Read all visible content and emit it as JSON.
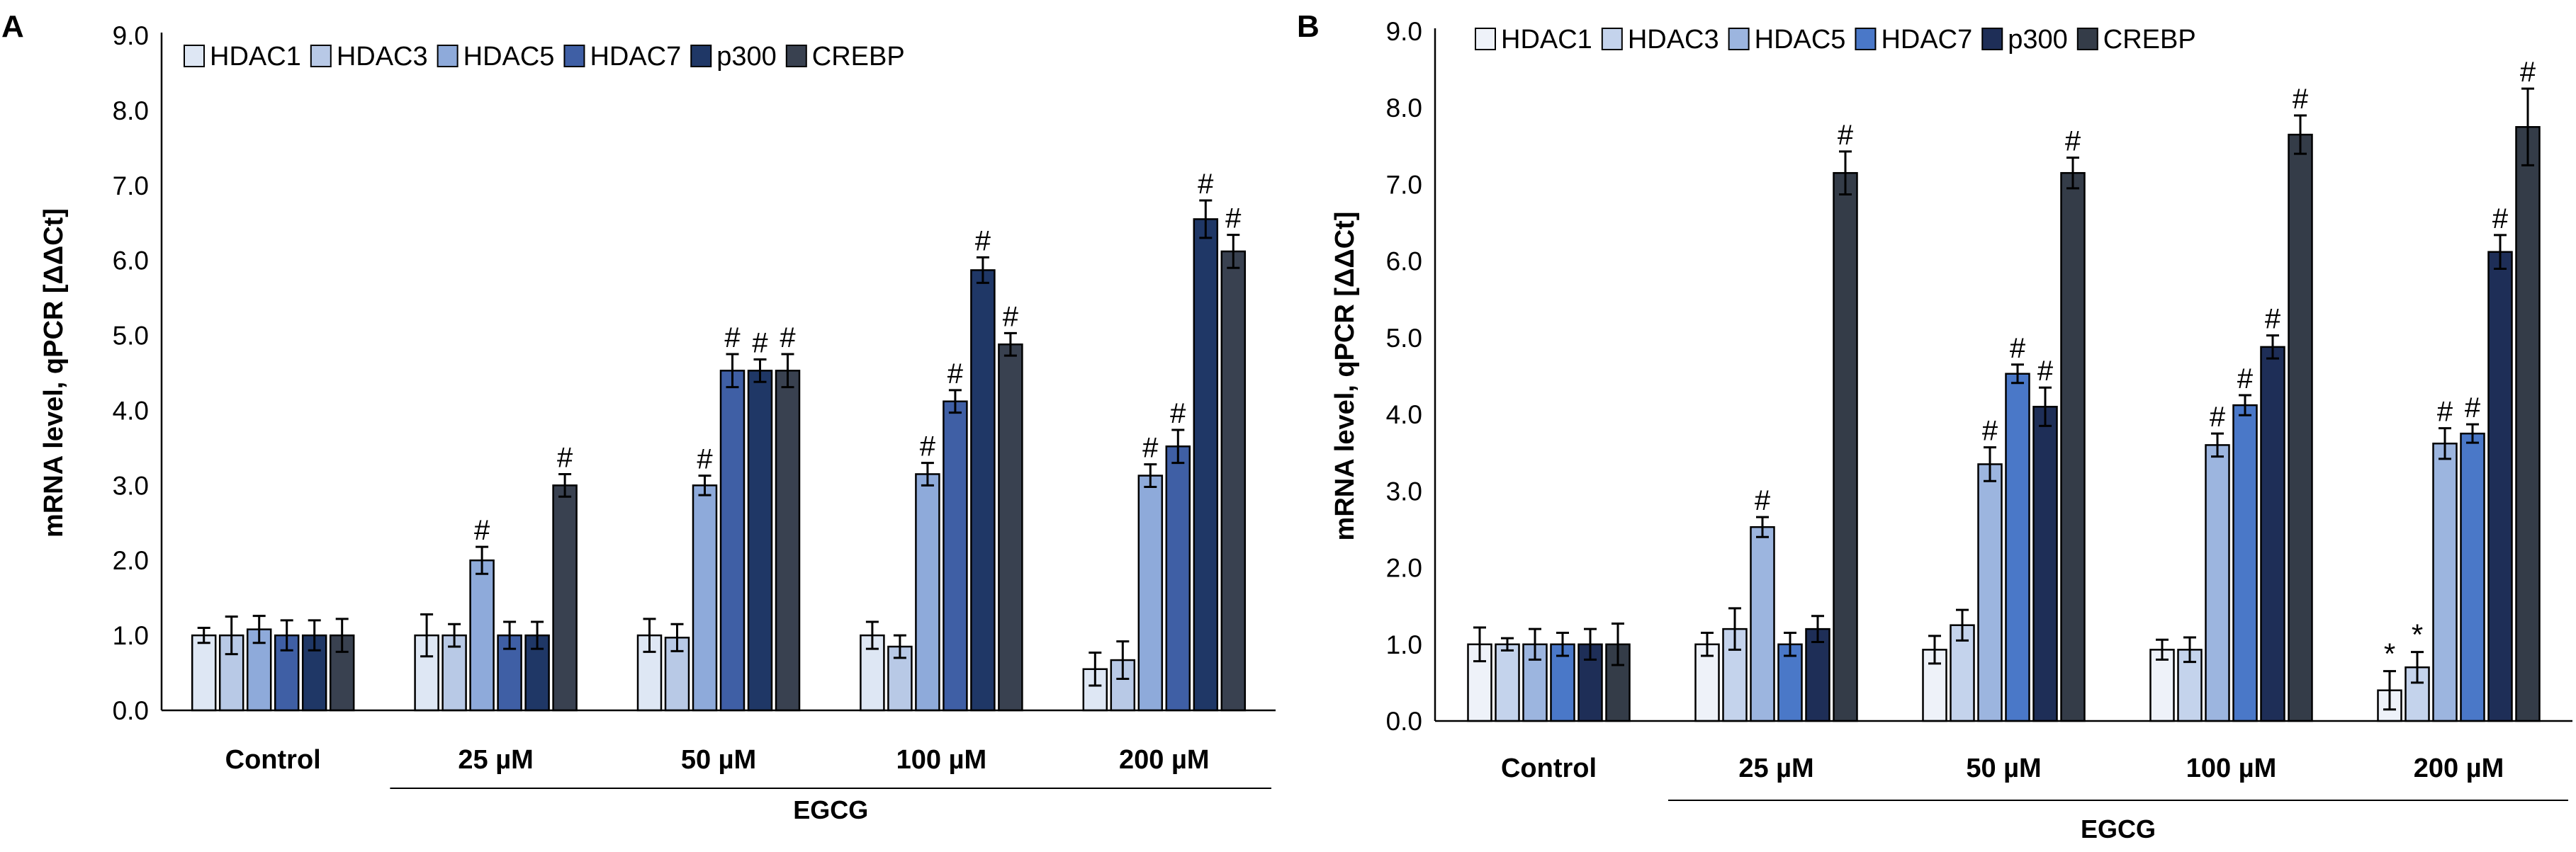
{
  "chart_data": [
    {
      "type": "bar",
      "panel_label": "A",
      "title": "",
      "ylabel": "mRNA level, qPCR [ΔΔCt]",
      "xlabel": "",
      "group_label": "EGCG",
      "ylim": [
        0,
        9
      ],
      "yticks": [
        "0.0",
        "1.0",
        "2.0",
        "3.0",
        "4.0",
        "5.0",
        "6.0",
        "7.0",
        "8.0",
        "9.0"
      ],
      "categories": [
        "Control",
        "25 µM",
        "50 µM",
        "100 µM",
        "200 µM"
      ],
      "series": [
        {
          "name": "HDAC1",
          "color": "#dee7f4",
          "values": [
            1.0,
            1.0,
            1.0,
            1.0,
            0.55
          ],
          "errors": [
            0.1,
            0.28,
            0.22,
            0.18,
            0.22
          ],
          "marks": [
            "",
            "",
            "",
            "",
            ""
          ]
        },
        {
          "name": "HDAC3",
          "color": "#b8c9e6",
          "values": [
            1.0,
            1.0,
            0.97,
            0.85,
            0.67
          ],
          "errors": [
            0.25,
            0.15,
            0.18,
            0.15,
            0.25
          ],
          "marks": [
            "",
            "",
            "",
            "",
            ""
          ]
        },
        {
          "name": "HDAC5",
          "color": "#8eaada",
          "values": [
            1.08,
            2.0,
            3.0,
            3.15,
            3.13
          ],
          "errors": [
            0.18,
            0.18,
            0.13,
            0.15,
            0.15
          ],
          "marks": [
            "",
            "#",
            "#",
            "#",
            "#"
          ]
        },
        {
          "name": "HDAC7",
          "color": "#3f5fa5",
          "values": [
            1.0,
            1.0,
            4.53,
            4.12,
            3.52
          ],
          "errors": [
            0.2,
            0.18,
            0.22,
            0.15,
            0.22
          ],
          "marks": [
            "",
            "",
            "#",
            "#",
            "#"
          ]
        },
        {
          "name": "p300",
          "color": "#1f3766",
          "values": [
            1.0,
            1.0,
            4.53,
            5.87,
            6.55
          ],
          "errors": [
            0.2,
            0.18,
            0.15,
            0.17,
            0.25
          ],
          "marks": [
            "",
            "",
            "#",
            "#",
            "#"
          ]
        },
        {
          "name": "CREBP",
          "color": "#394150",
          "values": [
            1.0,
            3.0,
            4.53,
            4.88,
            6.12
          ],
          "errors": [
            0.22,
            0.15,
            0.22,
            0.15,
            0.22
          ],
          "marks": [
            "",
            "#",
            "#",
            "#",
            "#"
          ]
        }
      ]
    },
    {
      "type": "bar",
      "panel_label": "B",
      "title": "",
      "ylabel": "mRNA level, qPCR [ΔΔCt]",
      "xlabel": "",
      "group_label": "EGCG",
      "ylim": [
        0,
        9
      ],
      "yticks": [
        "0.0",
        "1.0",
        "2.0",
        "3.0",
        "4.0",
        "5.0",
        "6.0",
        "7.0",
        "8.0",
        "9.0"
      ],
      "categories": [
        "Control",
        "25 µM",
        "50 µM",
        "100 µM",
        "200 µM"
      ],
      "series": [
        {
          "name": "HDAC1",
          "color": "#eef2f9",
          "values": [
            1.0,
            1.0,
            0.93,
            0.93,
            0.4
          ],
          "errors": [
            0.22,
            0.15,
            0.18,
            0.13,
            0.25
          ],
          "marks": [
            "",
            "",
            "",
            "",
            "*"
          ]
        },
        {
          "name": "HDAC3",
          "color": "#c4d3ec",
          "values": [
            1.0,
            1.2,
            1.25,
            0.93,
            0.7
          ],
          "errors": [
            0.08,
            0.27,
            0.2,
            0.16,
            0.2
          ],
          "marks": [
            "",
            "",
            "",
            "",
            "*"
          ]
        },
        {
          "name": "HDAC5",
          "color": "#9cb5df",
          "values": [
            1.0,
            2.53,
            3.35,
            3.6,
            3.62
          ],
          "errors": [
            0.2,
            0.13,
            0.22,
            0.15,
            0.2
          ],
          "marks": [
            "",
            "#",
            "#",
            "#",
            "#"
          ]
        },
        {
          "name": "HDAC7",
          "color": "#4a78c8",
          "values": [
            1.0,
            1.0,
            4.53,
            4.12,
            3.75
          ],
          "errors": [
            0.15,
            0.15,
            0.12,
            0.13,
            0.12
          ],
          "marks": [
            "",
            "",
            "#",
            "#",
            "#"
          ]
        },
        {
          "name": "p300",
          "color": "#1e2e57",
          "values": [
            1.0,
            1.2,
            4.1,
            4.88,
            6.12
          ],
          "errors": [
            0.2,
            0.17,
            0.25,
            0.15,
            0.22
          ],
          "marks": [
            "",
            "",
            "#",
            "#",
            "#"
          ]
        },
        {
          "name": "CREBP",
          "color": "#343c48",
          "values": [
            1.0,
            7.15,
            7.15,
            7.65,
            7.75
          ],
          "errors": [
            0.27,
            0.28,
            0.2,
            0.25,
            0.5
          ],
          "marks": [
            "",
            "#",
            "#",
            "#",
            "#"
          ]
        }
      ]
    }
  ]
}
